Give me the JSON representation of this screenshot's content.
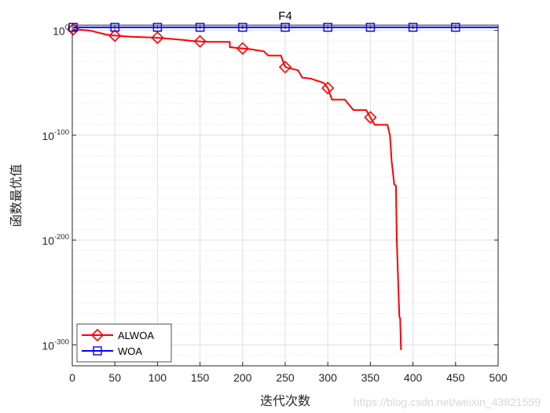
{
  "chart_data": {
    "type": "line",
    "title": "F4",
    "xlabel": "迭代次数",
    "ylabel": "函数最优值",
    "xlim": [
      0,
      500
    ],
    "ylog": true,
    "ylim_exponent": [
      -320,
      5
    ],
    "x_ticks": [
      0,
      50,
      100,
      150,
      200,
      250,
      300,
      350,
      400,
      450,
      500
    ],
    "y_ticks": [
      {
        "base": "10",
        "exp": "0"
      },
      {
        "base": "10",
        "exp": "-100"
      },
      {
        "base": "10",
        "exp": "-200"
      },
      {
        "base": "10",
        "exp": "-300"
      }
    ],
    "y_tick_exponents": [
      0,
      -100,
      -200,
      -300
    ],
    "grid": true,
    "legend_position": "bottom-left",
    "series": [
      {
        "name": "ALWOA",
        "color": "#ff0000",
        "marker": "diamond",
        "marker_x": [
          1,
          50,
          100,
          150,
          200,
          250,
          300,
          350
        ],
        "points_log10": [
          [
            1,
            1
          ],
          [
            20,
            0
          ],
          [
            30,
            -2
          ],
          [
            40,
            -4
          ],
          [
            50,
            -5
          ],
          [
            70,
            -6
          ],
          [
            100,
            -7
          ],
          [
            130,
            -9
          ],
          [
            140,
            -10
          ],
          [
            160,
            -11
          ],
          [
            185,
            -11
          ],
          [
            185,
            -16
          ],
          [
            210,
            -18
          ],
          [
            225,
            -20
          ],
          [
            230,
            -24
          ],
          [
            245,
            -24
          ],
          [
            250,
            -35
          ],
          [
            265,
            -38
          ],
          [
            270,
            -45
          ],
          [
            280,
            -46
          ],
          [
            295,
            -50
          ],
          [
            300,
            -55
          ],
          [
            305,
            -66
          ],
          [
            320,
            -66
          ],
          [
            330,
            -76
          ],
          [
            345,
            -76
          ],
          [
            355,
            -90
          ],
          [
            370,
            -90
          ],
          [
            373,
            -100
          ],
          [
            375,
            -125
          ],
          [
            378,
            -147
          ],
          [
            380,
            -148
          ],
          [
            381,
            -200
          ],
          [
            383,
            -250
          ],
          [
            384,
            -273
          ],
          [
            385,
            -275
          ],
          [
            386,
            -305
          ]
        ]
      },
      {
        "name": "WOA",
        "color": "#0000ff",
        "marker": "square",
        "marker_x": [
          1,
          50,
          100,
          150,
          200,
          250,
          300,
          350,
          400,
          450
        ],
        "points_log10": [
          [
            1,
            3
          ],
          [
            500,
            3
          ]
        ]
      }
    ]
  },
  "watermark": "https://blog.csdn.net/weixin_43821559"
}
